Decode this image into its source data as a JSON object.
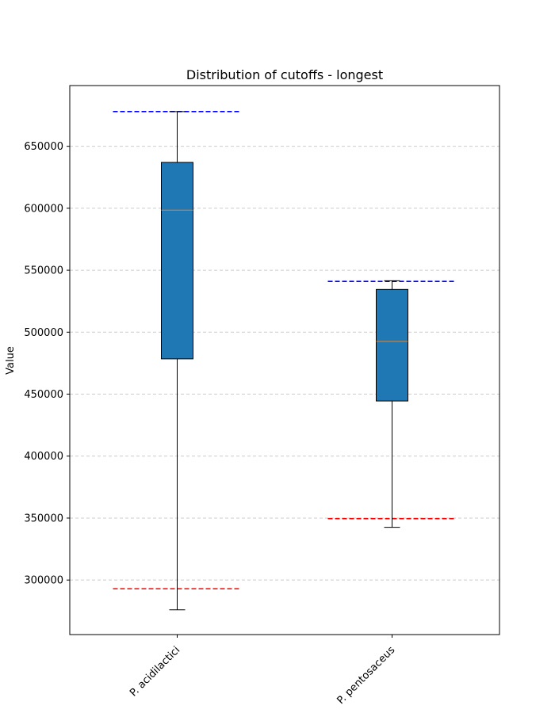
{
  "chart_data": {
    "type": "box",
    "title": "Distribution of cutoffs - longest",
    "xlabel": "",
    "ylabel": "Value",
    "ylim": [
      256000,
      699000
    ],
    "yticks": [
      300000,
      350000,
      400000,
      450000,
      500000,
      550000,
      600000,
      650000
    ],
    "grid": {
      "y": true,
      "x": false,
      "style": "dashed",
      "color": "#cccccc"
    },
    "categories": [
      "P. acidilactici",
      "P. pentosaceus"
    ],
    "boxes": [
      {
        "category": "P. acidilactici",
        "whisker_low": 276000,
        "q1": 478500,
        "median": 598500,
        "q3": 637000,
        "whisker_high": 678000,
        "upper_cutoff": 678000,
        "lower_cutoff": 293000
      },
      {
        "category": "P. pentosaceus",
        "whisker_low": 342500,
        "q1": 444500,
        "median": 492500,
        "q3": 534500,
        "whisker_high": 541500,
        "upper_cutoff": 541000,
        "lower_cutoff": 349500
      }
    ],
    "colors": {
      "box_fill": "#1f77b4",
      "median": "#ff7f0e",
      "upper_cutoff_line": "#0000ff",
      "lower_cutoff_line": "#ff0000"
    }
  }
}
